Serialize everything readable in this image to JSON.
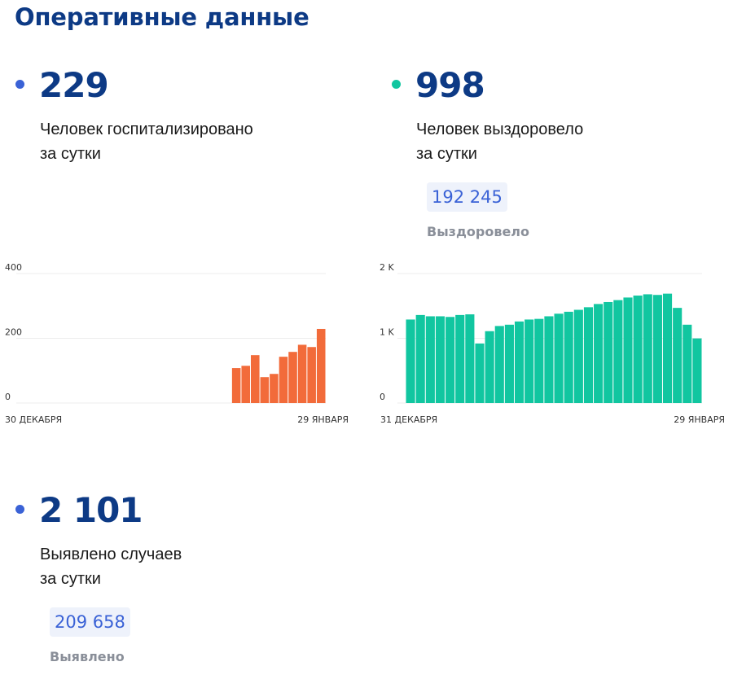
{
  "page": {
    "title": "Оперативные данные"
  },
  "hospitalized": {
    "value": "229",
    "line1": "Человек госпитализировано",
    "line2": "за сутки",
    "dot_color": "#3a62d6"
  },
  "recovered": {
    "value": "998",
    "line1": "Человек выздоровело",
    "line2": "за сутки",
    "total": "192 245",
    "total_label": "Выздоровело",
    "dot_color": "#11c6a0"
  },
  "cases": {
    "value": "2 101",
    "line1": "Выявлено случаев",
    "line2": "за сутки",
    "total": "209 658",
    "total_label": "Выявлено",
    "dot_color": "#3a62d6"
  },
  "chart_data": [
    {
      "type": "bar",
      "color": "#f26b3a",
      "yticks": [
        "0",
        "200",
        "400"
      ],
      "ylim": [
        0,
        400
      ],
      "x_start_label": "30 ДЕКАБРЯ",
      "x_end_label": "29 ЯНВАРЯ",
      "values": [
        null,
        null,
        null,
        null,
        null,
        null,
        null,
        null,
        null,
        null,
        null,
        null,
        null,
        null,
        null,
        null,
        null,
        null,
        null,
        null,
        null,
        null,
        108,
        115,
        148,
        80,
        90,
        143,
        158,
        180,
        173,
        229
      ]
    },
    {
      "type": "bar",
      "color": "#11c6a0",
      "yticks": [
        "0",
        "1 K",
        "2 K"
      ],
      "ylim": [
        0,
        2000
      ],
      "x_start_label": "31 ДЕКАБРЯ",
      "x_end_label": "29 ЯНВАРЯ",
      "values": [
        1290,
        1360,
        1340,
        1340,
        1330,
        1360,
        1370,
        920,
        1110,
        1190,
        1210,
        1260,
        1290,
        1300,
        1340,
        1380,
        1410,
        1440,
        1480,
        1530,
        1560,
        1590,
        1630,
        1660,
        1680,
        1670,
        1690,
        1470,
        1210,
        998
      ]
    }
  ]
}
